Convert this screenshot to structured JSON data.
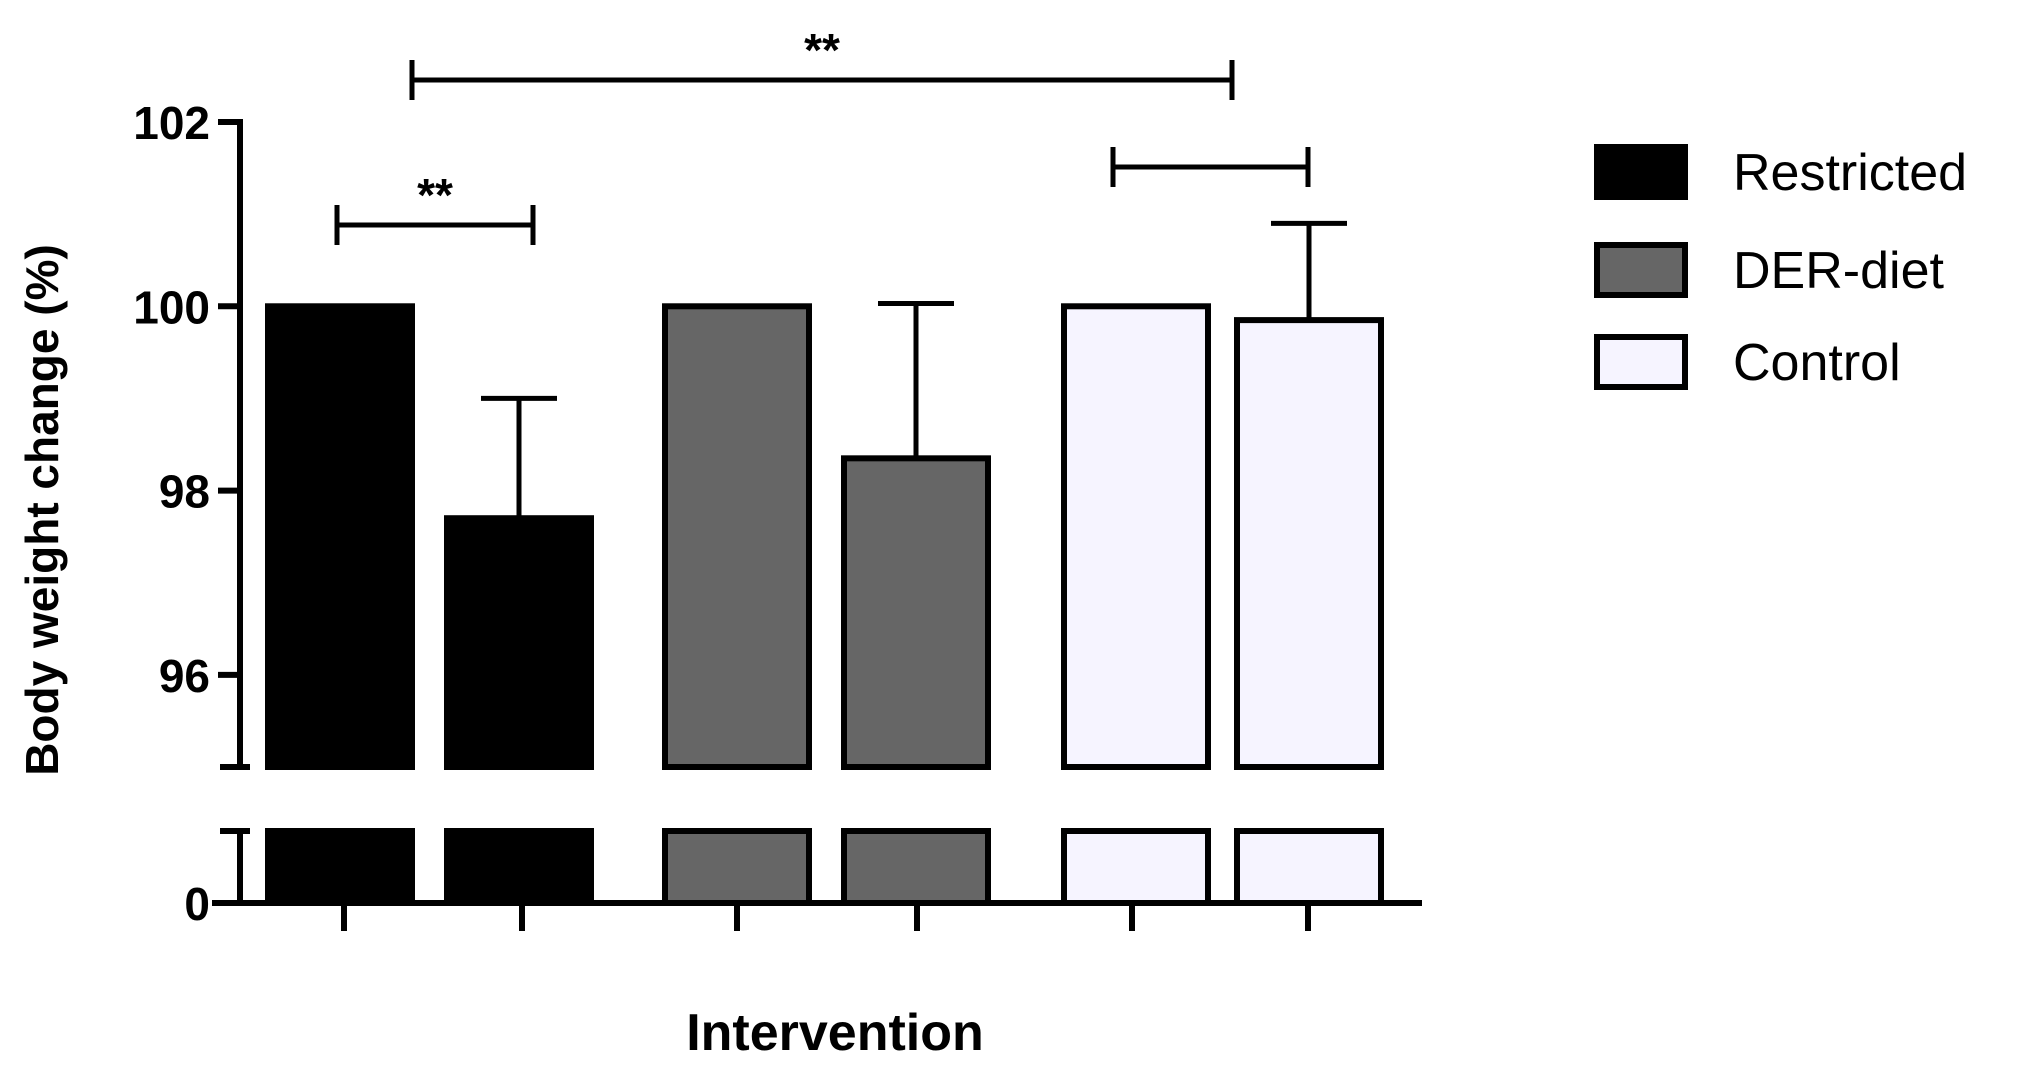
{
  "chart_data": {
    "type": "bar",
    "ylabel": "Body weight change (%)",
    "xlabel": "Intervention",
    "y_axis_broken": true,
    "y_break_between": [
      0,
      95
    ],
    "ylim_upper": [
      95,
      102
    ],
    "yticks_upper": [
      96,
      98,
      100,
      102
    ],
    "yticks_lower": [
      0
    ],
    "series": [
      {
        "name": "Restricted",
        "color": "#000000",
        "values": [
          100.0,
          97.7
        ],
        "errors": [
          0,
          1.3
        ]
      },
      {
        "name": "DER-diet",
        "color": "#666666",
        "values": [
          100.0,
          98.35
        ],
        "errors": [
          0,
          1.68
        ]
      },
      {
        "name": "Control",
        "color": "#f6f4ff",
        "values": [
          100.0,
          99.85
        ],
        "errors": [
          0,
          1.05
        ]
      }
    ],
    "significance": [
      {
        "label": "**",
        "from_bar": 0,
        "to_bar": 1,
        "y": 100.85
      },
      {
        "label": "**",
        "from_bar": 0,
        "to_bar": 4,
        "y": 102.4
      },
      {
        "label": "",
        "from_bar": 4,
        "to_bar": 5,
        "y": 101.5
      }
    ],
    "legend_position": "right"
  }
}
